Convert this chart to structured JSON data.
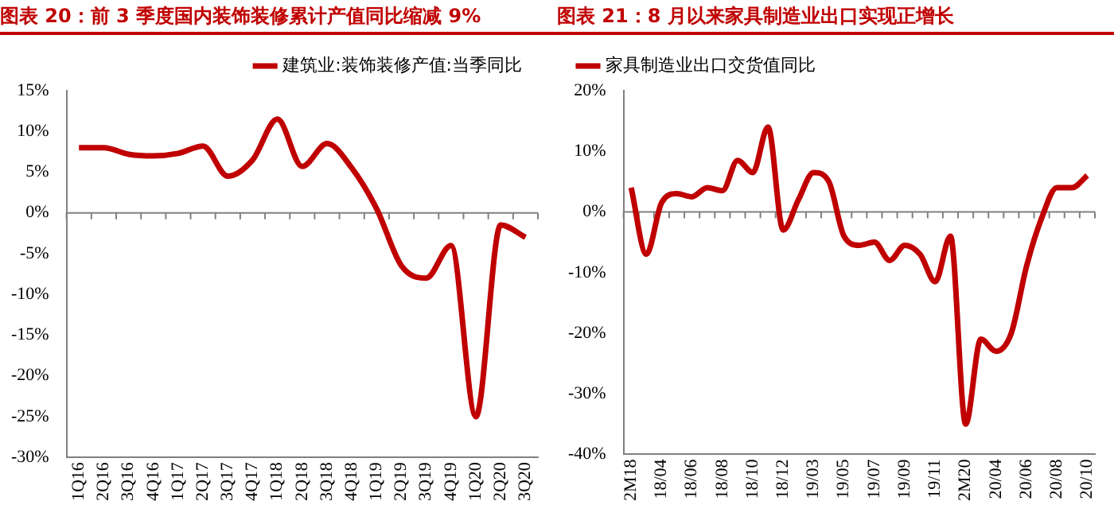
{
  "chart_data": [
    {
      "type": "line",
      "title": "图表 20：前 3 季度国内装饰装修累计产值同比缩减 9%",
      "categories": [
        "1Q16",
        "2Q16",
        "3Q16",
        "4Q16",
        "1Q17",
        "2Q17",
        "3Q17",
        "4Q17",
        "1Q18",
        "2Q18",
        "3Q18",
        "4Q18",
        "1Q19",
        "2Q19",
        "3Q19",
        "4Q19",
        "1Q20",
        "2Q20",
        "3Q20"
      ],
      "series": [
        {
          "name": "建筑业:装饰装修产值:当季同比",
          "color": "#c00000",
          "values": [
            8,
            8,
            7.2,
            7,
            7.3,
            8.2,
            4.5,
            6.5,
            11.5,
            5.7,
            8.5,
            5.5,
            0.5,
            -6.5,
            -8,
            -4,
            -25,
            -1.5,
            -3
          ]
        }
      ],
      "ylim": [
        -30,
        15
      ],
      "yticks": [
        {
          "value": -30,
          "label": "-30%"
        },
        {
          "value": -25,
          "label": "-25%"
        },
        {
          "value": -20,
          "label": "-20%"
        },
        {
          "value": -15,
          "label": "-15%"
        },
        {
          "value": -10,
          "label": "-10%"
        },
        {
          "value": -5,
          "label": "-5%"
        },
        {
          "value": 0,
          "label": "0%"
        },
        {
          "value": 5,
          "label": "5%"
        },
        {
          "value": 10,
          "label": "10%"
        },
        {
          "value": 15,
          "label": "15%"
        }
      ],
      "ref_lines": [
        {
          "axis": "y",
          "value": 0,
          "color": "#808080"
        }
      ],
      "legend": "top",
      "marker": "none",
      "line_style": "solid",
      "grid": false
    },
    {
      "type": "line",
      "title": "图表 21：8 月以来家具制造业出口实现正增长",
      "categories": [
        "2M18",
        null,
        "18/04",
        null,
        "18/06",
        null,
        "18/08",
        null,
        "18/10",
        null,
        "18/12",
        null,
        "19/03",
        null,
        "19/05",
        null,
        "19/07",
        null,
        "19/09",
        null,
        "19/11",
        null,
        "2M20",
        null,
        "20/04",
        null,
        "20/06",
        null,
        "20/08",
        null,
        "20/10"
      ],
      "series": [
        {
          "name": "家具制造业出口交货值同比",
          "color": "#c00000",
          "values": [
            4,
            -7,
            1.5,
            3,
            2.5,
            4,
            3.5,
            8.5,
            6.5,
            14,
            -3,
            2,
            6.5,
            5,
            -4,
            -5.5,
            -5,
            -8,
            -5.5,
            -7,
            -11.5,
            -4,
            -35,
            -21,
            -23,
            -20,
            -9,
            -1,
            4,
            4,
            6
          ]
        }
      ],
      "ylim": [
        -40,
        20
      ],
      "yticks": [
        {
          "value": -40,
          "label": "-40%"
        },
        {
          "value": -30,
          "label": "-30%"
        },
        {
          "value": -20,
          "label": "-20%"
        },
        {
          "value": -10,
          "label": "-10%"
        },
        {
          "value": 0,
          "label": "0%"
        },
        {
          "value": 10,
          "label": "10%"
        },
        {
          "value": 20,
          "label": "20%"
        }
      ],
      "ref_lines": [
        {
          "axis": "y",
          "value": 0,
          "color": "#808080"
        }
      ],
      "legend": "top",
      "marker": "none",
      "line_style": "solid",
      "grid": false
    }
  ]
}
